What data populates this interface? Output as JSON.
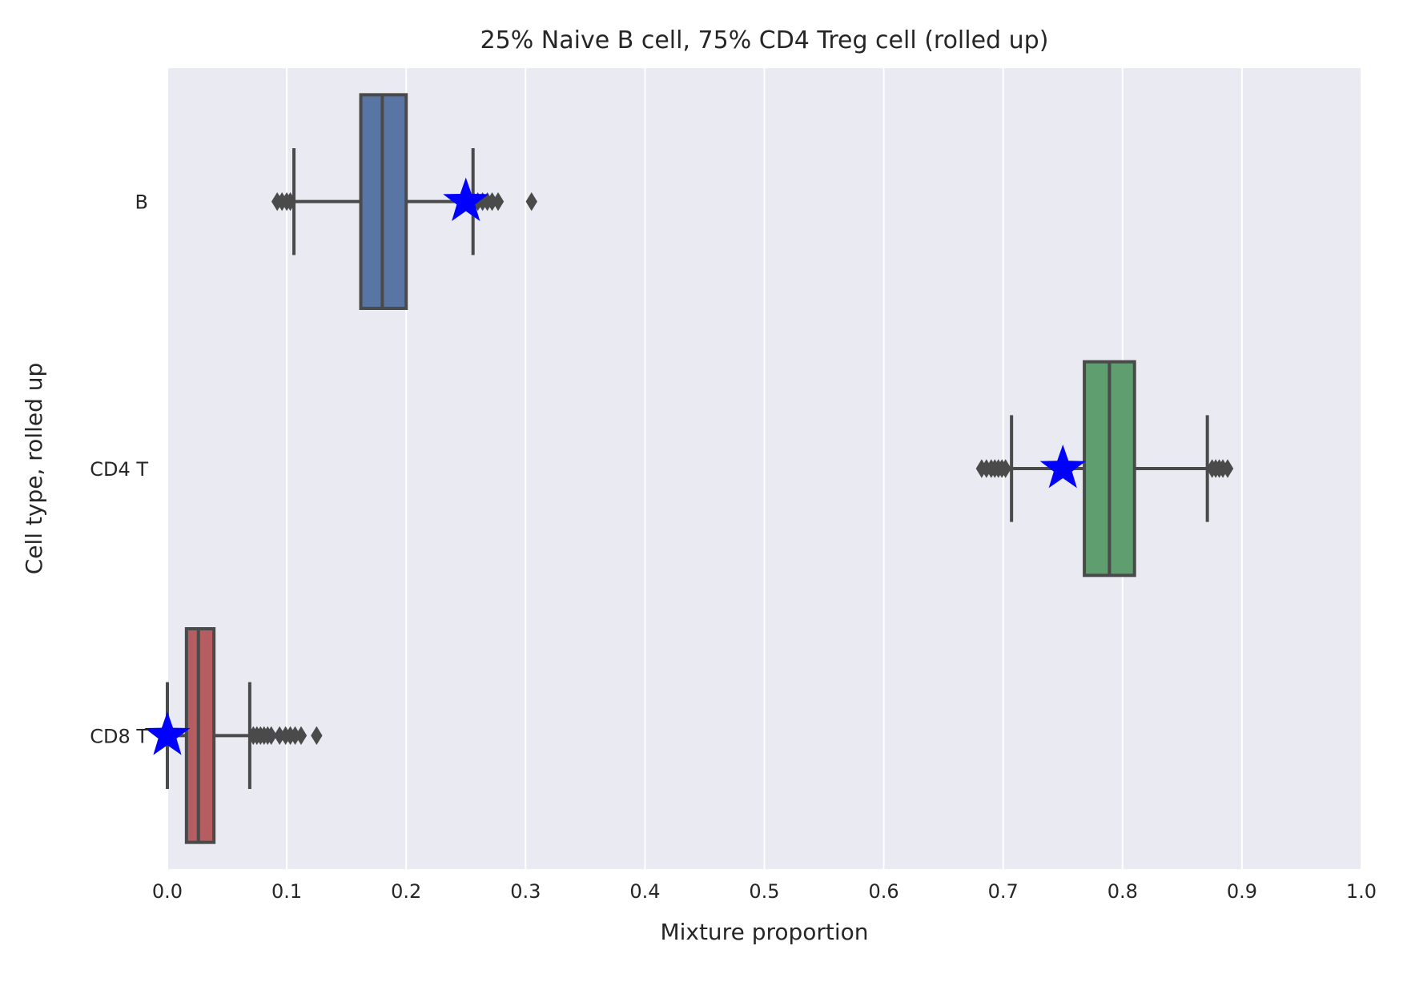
{
  "chart_data": {
    "type": "boxplot",
    "orientation": "horizontal",
    "title": "25% Naive B cell, 75% CD4 Treg cell (rolled up)",
    "xlabel": "Mixture proportion",
    "ylabel": "Cell type, rolled up",
    "xlim": [
      0.0,
      1.0
    ],
    "xticks": [
      "0.0",
      "0.1",
      "0.2",
      "0.3",
      "0.4",
      "0.5",
      "0.6",
      "0.7",
      "0.8",
      "0.9",
      "1.0"
    ],
    "grid": true,
    "categories": [
      "B",
      "CD4 T",
      "CD8 T"
    ],
    "boxes": [
      {
        "category": "B",
        "color": "#5875a4",
        "whisker_low": 0.106,
        "q1": 0.162,
        "median": 0.18,
        "q3": 0.2,
        "whisker_high": 0.256,
        "outliers": [
          0.092,
          0.096,
          0.1,
          0.103,
          0.26,
          0.264,
          0.268,
          0.272,
          0.277,
          0.305
        ],
        "true_value": 0.25
      },
      {
        "category": "CD4 T",
        "color": "#5f9e6e",
        "whisker_low": 0.707,
        "q1": 0.768,
        "median": 0.789,
        "q3": 0.81,
        "whisker_high": 0.871,
        "outliers": [
          0.682,
          0.686,
          0.69,
          0.693,
          0.696,
          0.699,
          0.702,
          0.875,
          0.878,
          0.881,
          0.884,
          0.888
        ],
        "true_value": 0.75
      },
      {
        "category": "CD8 T",
        "color": "#b55d60",
        "whisker_low": 0.0,
        "q1": 0.016,
        "median": 0.026,
        "q3": 0.039,
        "whisker_high": 0.069,
        "outliers": [
          0.072,
          0.075,
          0.078,
          0.081,
          0.084,
          0.087,
          0.094,
          0.099,
          0.103,
          0.107,
          0.112,
          0.125
        ],
        "true_value": 0.0
      }
    ],
    "colors": {
      "background": "#eaeaf2",
      "grid": "#ffffff",
      "line": "#4a4a4a",
      "marker": "#0000ff"
    }
  }
}
